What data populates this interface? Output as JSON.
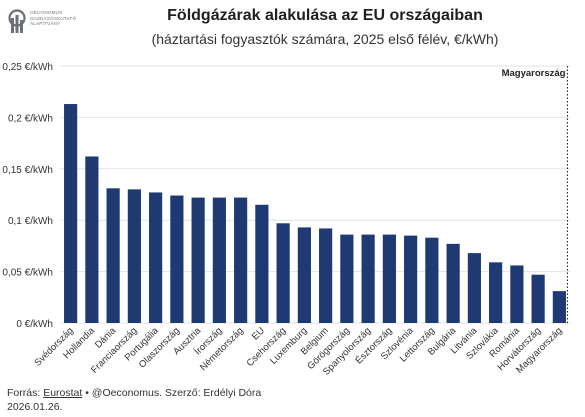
{
  "header": {
    "logo_lines": [
      "Oeconomus",
      "Gazdaságkutató",
      "Alapítvány"
    ],
    "title": "Földgázárak alakulása az EU országaiban",
    "subtitle": "(háztartási fogyasztók számára, 2025 első félév, €/kWh)"
  },
  "footer": {
    "source_label": "Forrás:",
    "source_link": "Eurostat",
    "source_rest": "• @Oeconomus. Szerző: Erdélyi Dóra",
    "date": "2026.01.26."
  },
  "colors": {
    "bar": "#1f3a73",
    "grid": "#e3e3e3",
    "axis_text": "#333333",
    "logo": "#6b6f7a"
  },
  "chart_data": {
    "type": "bar",
    "title": "Földgázárak alakulása az EU országaiban",
    "subtitle": "(háztartási fogyasztók számára, 2025 első félév, €/kWh)",
    "xlabel": "",
    "ylabel": "",
    "ylim": [
      0,
      0.25
    ],
    "yticks": [
      0,
      0.05,
      0.1,
      0.15,
      0.2,
      0.25
    ],
    "ytick_labels": [
      "0 €/kWh",
      "0,05 €/kWh",
      "0,1 €/kWh",
      "0,15 €/kWh",
      "0,2 €/kWh",
      "0,25 €/kWh"
    ],
    "grid": true,
    "categories": [
      "Svédország",
      "Hollandia",
      "Dánia",
      "Franciaország",
      "Portugália",
      "Olaszország",
      "Ausztria",
      "Írország",
      "Németország",
      "EU",
      "Csehország",
      "Luxemburg",
      "Belgium",
      "Görögország",
      "Spanyolország",
      "Észtország",
      "Szlovénia",
      "Lettország",
      "Bulgária",
      "Litvánia",
      "Szlovákia",
      "Románia",
      "Horvátország",
      "Magyarország"
    ],
    "values": [
      0.213,
      0.162,
      0.131,
      0.13,
      0.127,
      0.124,
      0.122,
      0.122,
      0.122,
      0.115,
      0.097,
      0.093,
      0.092,
      0.086,
      0.086,
      0.086,
      0.085,
      0.083,
      0.077,
      0.068,
      0.059,
      0.056,
      0.047,
      0.031
    ],
    "annotations": [
      {
        "text": "Magyarország",
        "category": "Magyarország",
        "style": "dotted-line"
      }
    ]
  }
}
